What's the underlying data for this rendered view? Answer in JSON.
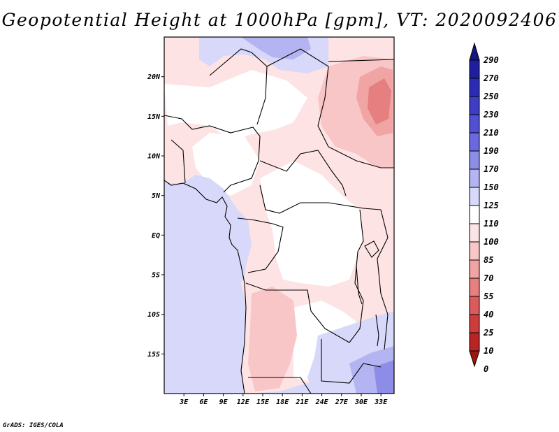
{
  "title": "Geopotential Height at 1000hPa [gpm], VT: 2020092406",
  "footer": "GrADS: IGES/COLA",
  "lat_labels": [
    "20N",
    "15N",
    "10N",
    "5N",
    "EQ",
    "5S",
    "10S",
    "15S"
  ],
  "lon_labels": [
    "3E",
    "6E",
    "9E",
    "12E",
    "15E",
    "18E",
    "21E",
    "24E",
    "27E",
    "30E",
    "33E"
  ],
  "lat_values": [
    20,
    15,
    10,
    5,
    0,
    -5,
    -10,
    -15
  ],
  "lon_values": [
    3,
    6,
    9,
    12,
    15,
    18,
    21,
    24,
    27,
    30,
    33
  ],
  "map_extent": {
    "lon_min": 0,
    "lon_max": 35,
    "lat_min": -20,
    "lat_max": 25
  },
  "colorbar": {
    "levels": [
      "290",
      "270",
      "250",
      "230",
      "210",
      "190",
      "170",
      "150",
      "125",
      "110",
      "100",
      "85",
      "70",
      "55",
      "40",
      "25",
      "10",
      "0"
    ],
    "colors": [
      "#161680",
      "#1e1e9f",
      "#2b2bb5",
      "#3d3dc6",
      "#5050d2",
      "#6a6ade",
      "#8d8de8",
      "#b4b4f2",
      "#d8d8fa",
      "#ffffff",
      "#fde3e3",
      "#f8c6c6",
      "#f0a4a4",
      "#e67f7f",
      "#da5b5b",
      "#cc3c3c",
      "#b82424",
      "#a01414"
    ]
  },
  "legend_low": "#a01414",
  "legend_high": "#161680"
}
